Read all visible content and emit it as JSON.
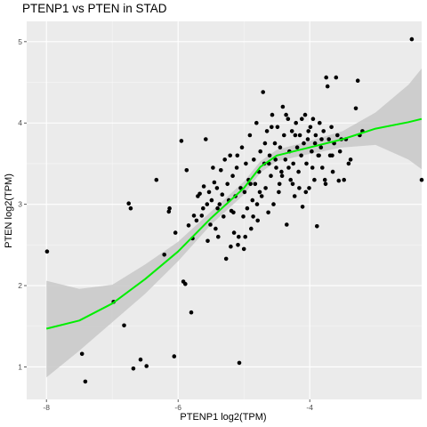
{
  "chart_data": {
    "type": "scatter",
    "title": "PTENP1 vs  PTEN in STAD",
    "xlabel": "PTENP1 log2(TPM)",
    "ylabel": "PTEN log2(TPM)",
    "xlim": [
      -8.3,
      -2.3
    ],
    "ylim": [
      0.6,
      5.25
    ],
    "x_ticks": [
      -8,
      -6,
      -4
    ],
    "y_ticks": [
      1,
      2,
      3,
      4,
      5
    ],
    "x_tick_labels": [
      "-8",
      "-6",
      "-4"
    ],
    "y_tick_labels": [
      "1",
      "2",
      "3",
      "4",
      "5"
    ],
    "grid": true,
    "colors": {
      "panel": "#ebebeb",
      "grid_major": "#ffffff",
      "points": "#000000",
      "smooth_line": "#00ee00",
      "ribbon": "#c8c8c8"
    },
    "points": [
      [
        -7.99,
        2.42
      ],
      [
        -7.46,
        1.16
      ],
      [
        -7.41,
        0.82
      ],
      [
        -6.98,
        1.8
      ],
      [
        -6.82,
        1.51
      ],
      [
        -6.75,
        3.01
      ],
      [
        -6.72,
        2.95
      ],
      [
        -6.68,
        0.98
      ],
      [
        -6.57,
        1.09
      ],
      [
        -6.48,
        1.01
      ],
      [
        -6.33,
        3.3
      ],
      [
        -6.21,
        2.38
      ],
      [
        -6.14,
        2.91
      ],
      [
        -6.13,
        2.95
      ],
      [
        -6.06,
        1.13
      ],
      [
        -6.04,
        2.65
      ],
      [
        -5.95,
        3.78
      ],
      [
        -5.92,
        2.05
      ],
      [
        -5.89,
        2.02
      ],
      [
        -5.84,
        2.74
      ],
      [
        -5.8,
        1.67
      ],
      [
        -5.78,
        2.58
      ],
      [
        -5.76,
        2.86
      ],
      [
        -5.72,
        2.8
      ],
      [
        -5.7,
        3.1
      ],
      [
        -5.67,
        3.13
      ],
      [
        -5.64,
        2.86
      ],
      [
        -5.61,
        3.22
      ],
      [
        -5.58,
        3.8
      ],
      [
        -5.56,
        3.0
      ],
      [
        -5.53,
        3.15
      ],
      [
        -5.51,
        2.75
      ],
      [
        -5.49,
        3.05
      ],
      [
        -5.47,
        3.45
      ],
      [
        -5.45,
        3.27
      ],
      [
        -5.43,
        2.7
      ],
      [
        -5.41,
        3.2
      ],
      [
        -5.39,
        2.6
      ],
      [
        -5.37,
        3.0
      ],
      [
        -5.35,
        3.42
      ],
      [
        -5.33,
        3.12
      ],
      [
        -5.31,
        2.85
      ],
      [
        -5.29,
        3.55
      ],
      [
        -5.27,
        2.33
      ],
      [
        -5.25,
        3.25
      ],
      [
        -5.23,
        3.05
      ],
      [
        -5.21,
        3.6
      ],
      [
        -5.19,
        2.92
      ],
      [
        -5.17,
        3.35
      ],
      [
        -5.15,
        2.65
      ],
      [
        -5.13,
        3.1
      ],
      [
        -5.11,
        3.45
      ],
      [
        -5.09,
        2.5
      ],
      [
        -5.07,
        1.05
      ],
      [
        -5.05,
        3.2
      ],
      [
        -5.03,
        3.7
      ],
      [
        -5.01,
        2.85
      ],
      [
        -4.99,
        3.15
      ],
      [
        -4.97,
        3.5
      ],
      [
        -4.95,
        2.95
      ],
      [
        -4.93,
        3.3
      ],
      [
        -4.91,
        3.85
      ],
      [
        -4.89,
        2.7
      ],
      [
        -4.87,
        3.05
      ],
      [
        -4.85,
        3.55
      ],
      [
        -4.83,
        3.25
      ],
      [
        -4.81,
        4.0
      ],
      [
        -4.79,
        2.8
      ],
      [
        -4.77,
        3.4
      ],
      [
        -4.75,
        3.65
      ],
      [
        -4.73,
        3.1
      ],
      [
        -4.71,
        4.38
      ],
      [
        -4.69,
        3.5
      ],
      [
        -4.67,
        3.2
      ],
      [
        -4.65,
        3.9
      ],
      [
        -4.63,
        2.9
      ],
      [
        -4.61,
        3.6
      ],
      [
        -4.59,
        3.35
      ],
      [
        -4.57,
        4.1
      ],
      [
        -4.55,
        3.0
      ],
      [
        -4.53,
        3.75
      ],
      [
        -4.51,
        3.45
      ],
      [
        -4.49,
        3.95
      ],
      [
        -4.47,
        3.15
      ],
      [
        -4.45,
        3.7
      ],
      [
        -4.43,
        3.4
      ],
      [
        -4.41,
        4.2
      ],
      [
        -4.39,
        3.85
      ],
      [
        -4.37,
        3.55
      ],
      [
        -4.35,
        2.75
      ],
      [
        -4.33,
        4.05
      ],
      [
        -4.31,
        3.65
      ],
      [
        -4.29,
        3.3
      ],
      [
        -4.27,
        3.9
      ],
      [
        -4.25,
        3.5
      ],
      [
        -4.23,
        3.1
      ],
      [
        -4.21,
        4.0
      ],
      [
        -4.19,
        3.7
      ],
      [
        -4.17,
        3.4
      ],
      [
        -4.15,
        3.85
      ],
      [
        -4.13,
        3.6
      ],
      [
        -4.11,
        2.97
      ],
      [
        -4.09,
        3.75
      ],
      [
        -4.07,
        4.1
      ],
      [
        -4.05,
        3.5
      ],
      [
        -4.03,
        3.8
      ],
      [
        -4.01,
        3.2
      ],
      [
        -3.99,
        3.95
      ],
      [
        -3.97,
        3.65
      ],
      [
        -3.95,
        4.05
      ],
      [
        -3.93,
        3.3
      ],
      [
        -3.91,
        3.85
      ],
      [
        -3.89,
        2.73
      ],
      [
        -3.87,
        3.6
      ],
      [
        -3.85,
        4.0
      ],
      [
        -3.83,
        3.7
      ],
      [
        -3.81,
        3.45
      ],
      [
        -3.79,
        3.9
      ],
      [
        -3.77,
        3.3
      ],
      [
        -3.75,
        4.56
      ],
      [
        -3.73,
        4.45
      ],
      [
        -3.71,
        3.8
      ],
      [
        -3.69,
        3.6
      ],
      [
        -3.67,
        3.95
      ],
      [
        -3.65,
        3.4
      ],
      [
        -3.63,
        3.75
      ],
      [
        -3.6,
        4.56
      ],
      [
        -3.58,
        3.85
      ],
      [
        -3.56,
        3.29
      ],
      [
        -3.52,
        3.8
      ],
      [
        -3.48,
        3.3
      ],
      [
        -3.45,
        3.8
      ],
      [
        -3.41,
        3.5
      ],
      [
        -3.38,
        3.55
      ],
      [
        -3.3,
        4.18
      ],
      [
        -3.27,
        4.52
      ],
      [
        -3.24,
        3.85
      ],
      [
        -3.2,
        3.9
      ],
      [
        -2.45,
        5.03
      ],
      [
        -2.3,
        3.3
      ],
      [
        -5.87,
        3.42
      ],
      [
        -5.62,
        2.95
      ],
      [
        -5.55,
        2.55
      ],
      [
        -5.4,
        2.95
      ],
      [
        -5.2,
        2.48
      ],
      [
        -5.1,
        3.6
      ],
      [
        -4.98,
        2.6
      ],
      [
        -4.9,
        3.25
      ],
      [
        -4.8,
        3.0
      ],
      [
        -4.68,
        3.75
      ],
      [
        -4.58,
        3.95
      ],
      [
        -4.46,
        3.25
      ],
      [
        -4.36,
        4.1
      ],
      [
        -4.26,
        3.25
      ],
      [
        -4.16,
        3.2
      ],
      [
        -4.06,
        3.15
      ],
      [
        -3.96,
        3.45
      ],
      [
        -3.86,
        3.6
      ],
      [
        -3.76,
        3.25
      ],
      [
        -3.66,
        3.6
      ],
      [
        -3.54,
        3.65
      ],
      [
        -5.0,
        2.45
      ],
      [
        -5.08,
        2.6
      ],
      [
        -5.16,
        2.9
      ],
      [
        -4.86,
        2.85
      ],
      [
        -4.76,
        3.15
      ],
      [
        -4.62,
        3.5
      ],
      [
        -4.52,
        3.55
      ],
      [
        -4.42,
        3.35
      ],
      [
        -4.32,
        3.45
      ],
      [
        -4.22,
        3.85
      ],
      [
        -4.12,
        4.05
      ],
      [
        -4.02,
        3.9
      ],
      [
        -3.92,
        3.75
      ],
      [
        -3.82,
        3.8
      ]
    ],
    "smooth_fit": [
      [
        -8.0,
        1.47
      ],
      [
        -7.5,
        1.57
      ],
      [
        -7.0,
        1.78
      ],
      [
        -6.5,
        2.08
      ],
      [
        -6.0,
        2.42
      ],
      [
        -5.5,
        2.83
      ],
      [
        -5.0,
        3.2
      ],
      [
        -4.75,
        3.46
      ],
      [
        -4.5,
        3.6
      ],
      [
        -4.0,
        3.7
      ],
      [
        -3.5,
        3.8
      ],
      [
        -3.0,
        3.93
      ],
      [
        -2.5,
        4.01
      ],
      [
        -2.3,
        4.05
      ]
    ],
    "ci_band": [
      [
        -8.0,
        0.87,
        2.06
      ],
      [
        -7.5,
        1.2,
        1.96
      ],
      [
        -7.0,
        1.55,
        2.01
      ],
      [
        -6.5,
        1.9,
        2.26
      ],
      [
        -6.0,
        2.3,
        2.54
      ],
      [
        -5.5,
        2.75,
        2.91
      ],
      [
        -5.0,
        3.12,
        3.28
      ],
      [
        -4.75,
        3.39,
        3.53
      ],
      [
        -4.5,
        3.53,
        3.67
      ],
      [
        -4.0,
        3.62,
        3.78
      ],
      [
        -3.5,
        3.7,
        3.9
      ],
      [
        -3.0,
        3.73,
        4.13
      ],
      [
        -2.5,
        3.55,
        4.47
      ],
      [
        -2.3,
        3.43,
        4.67
      ]
    ]
  }
}
